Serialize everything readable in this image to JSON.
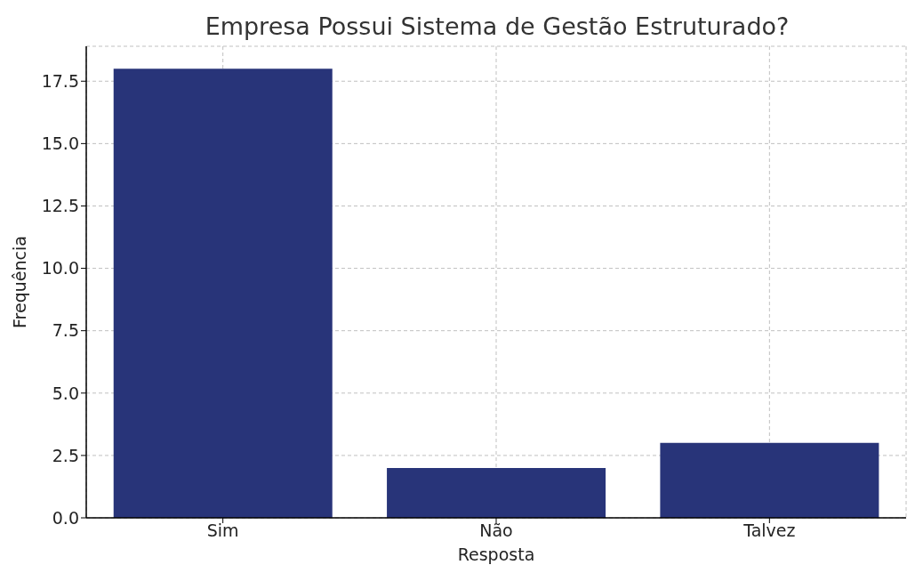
{
  "chart_data": {
    "type": "bar",
    "title": "Empresa Possui Sistema de Gestão Estruturado?",
    "xlabel": "Resposta",
    "ylabel": "Frequência",
    "categories": [
      "Sim",
      "Não",
      "Talvez"
    ],
    "values": [
      18,
      2,
      3
    ],
    "color": "#283479",
    "ylim": [
      0,
      18.9
    ],
    "yticks": [
      {
        "value": 0,
        "label": "0.0"
      },
      {
        "value": 2.5,
        "label": "2.5"
      },
      {
        "value": 5,
        "label": "5.0"
      },
      {
        "value": 7.5,
        "label": "7.5"
      },
      {
        "value": 10,
        "label": "10.0"
      },
      {
        "value": 12.5,
        "label": "12.5"
      },
      {
        "value": 15,
        "label": "15.0"
      },
      {
        "value": 17.5,
        "label": "17.5"
      }
    ],
    "grid": true
  }
}
